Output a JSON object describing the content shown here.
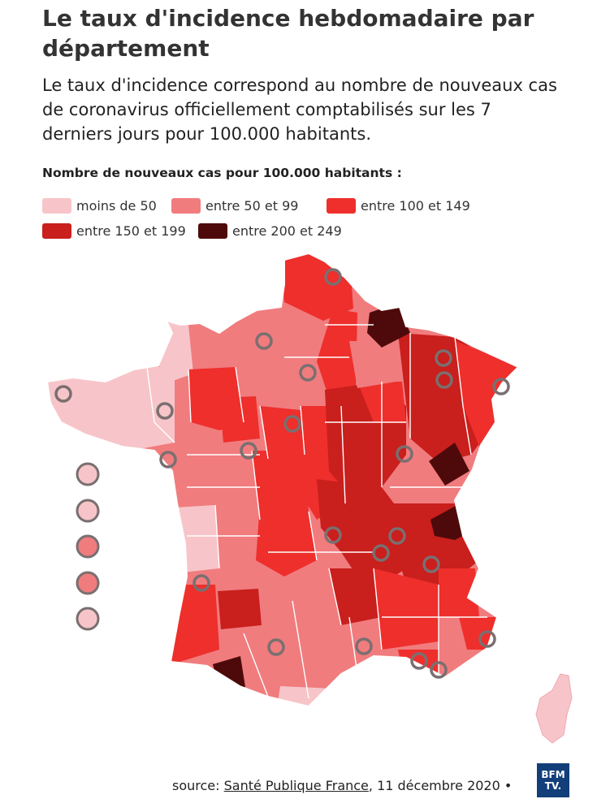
{
  "header": {
    "title": "Le taux d'incidence hebdomadaire par département",
    "subtitle": "Le taux d'incidence correspond au nombre de nouveaux cas de coronavirus officiellement comptabilisés sur les 7 derniers jours pour 100.000 habitants."
  },
  "legend": {
    "title": "Nombre de nouveaux cas pour 100.000 habitants :",
    "items": [
      {
        "label": "moins de 50",
        "color": "#f7c5c9"
      },
      {
        "label": "entre 50 et 99",
        "color": "#f07c7e"
      },
      {
        "label": "entre 100 et 149",
        "color": "#ee2f2c"
      },
      {
        "label": "entre 150 et 199",
        "color": "#c91f1d"
      },
      {
        "label": "entre 200 et 249",
        "color": "#4e0a0a"
      }
    ]
  },
  "map": {
    "region": "France",
    "marker_icon": "circle-marker-icon",
    "border_color": "#ffffff"
  },
  "footer": {
    "source_prefix": "source: ",
    "source_link": "Santé Publique France",
    "source_suffix": ", 11 décembre 2020 •",
    "logo_line1": "BFM",
    "logo_line2": "TV."
  }
}
